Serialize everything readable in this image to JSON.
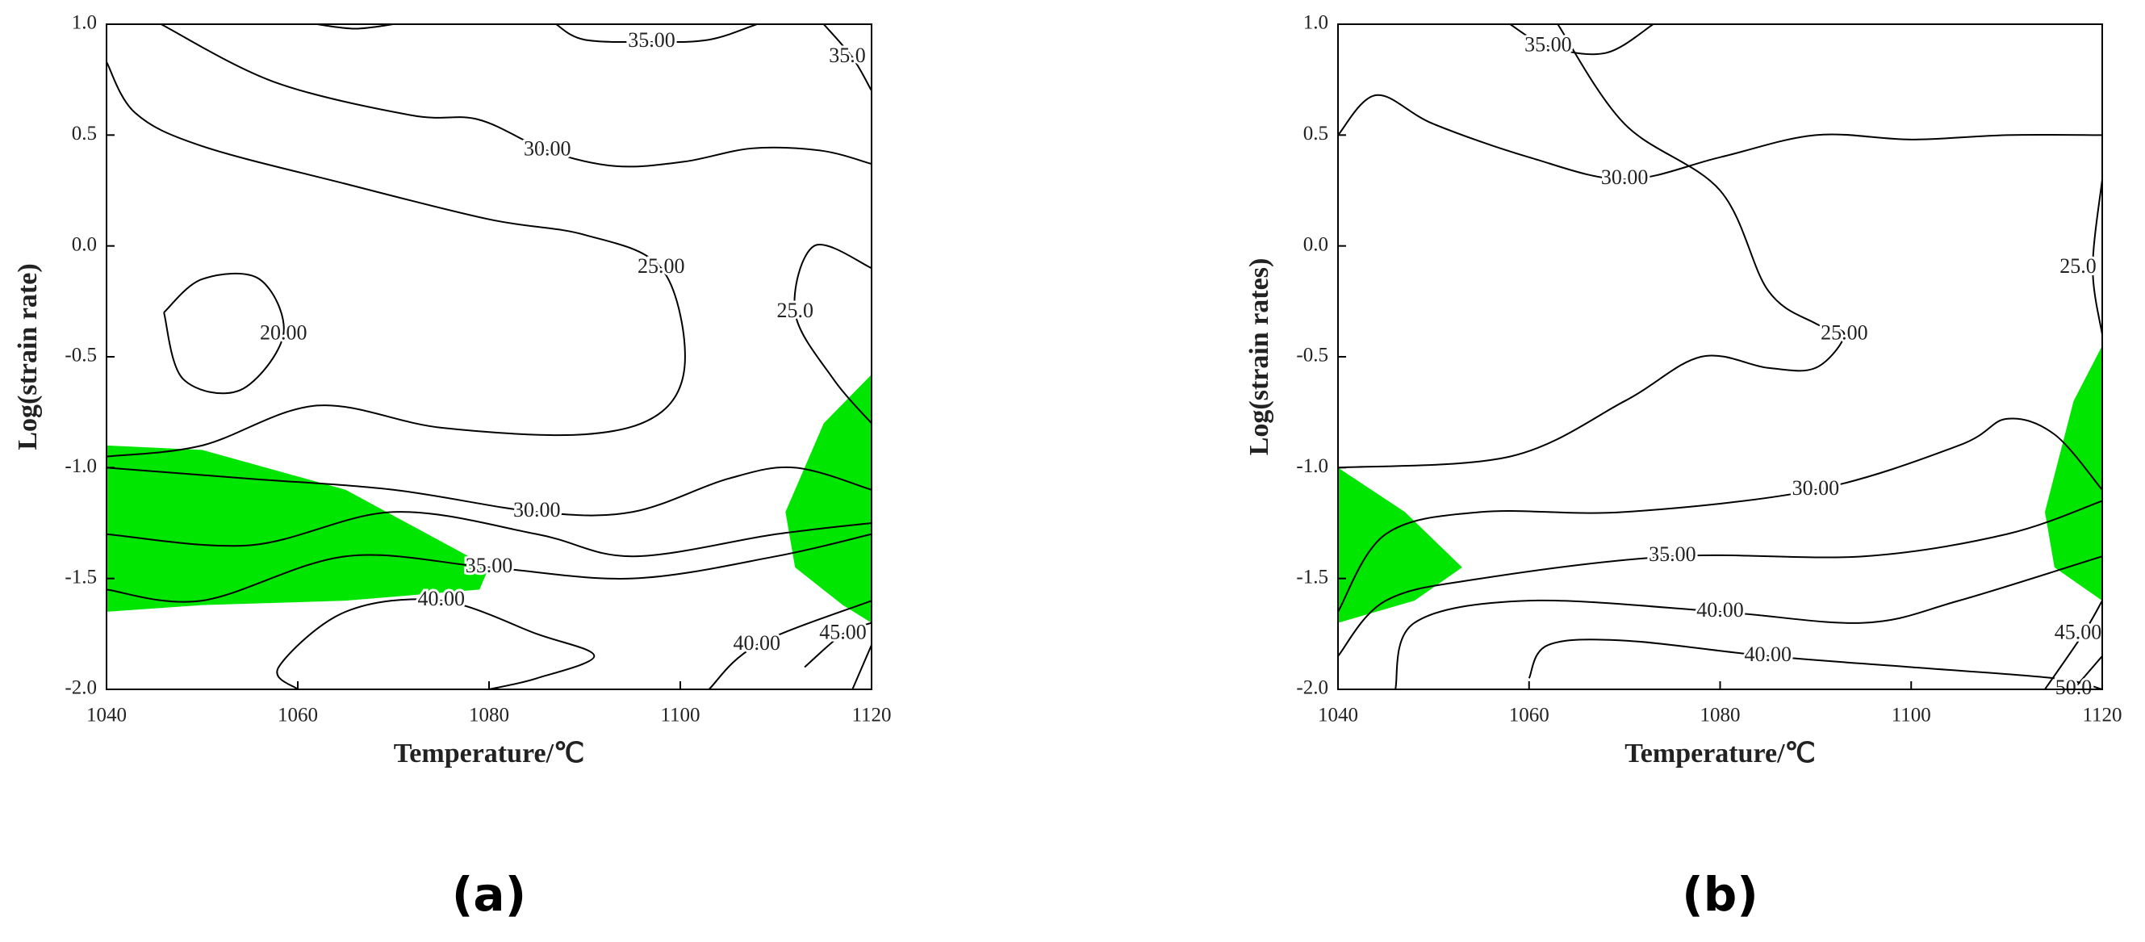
{
  "chart_data": [
    {
      "type": "contour",
      "panel_label": "(a)",
      "xlabel": "Temperature/℃",
      "ylabel": "Log(strain rate)",
      "xlim": [
        1040,
        1120
      ],
      "ylim": [
        -2,
        1
      ],
      "xticks": [
        1040,
        1060,
        1080,
        1100,
        1120
      ],
      "yticks": [
        {
          "value": -2,
          "label": "-2.0"
        },
        {
          "value": -1.5,
          "label": "-1.5"
        },
        {
          "value": -1,
          "label": "-1.0"
        },
        {
          "value": -0.5,
          "label": "-0.5"
        },
        {
          "value": 0,
          "label": "0.0"
        },
        {
          "value": 0.5,
          "label": "0.5"
        },
        {
          "value": 1,
          "label": "1.0"
        }
      ],
      "region_color": "#00e600",
      "line_color": "#000000",
      "regions": [
        {
          "x": [
            1040,
            1050,
            1065,
            1080,
            1079,
            1065,
            1050,
            1040
          ],
          "y": [
            -0.9,
            -0.92,
            -1.1,
            -1.45,
            -1.55,
            -1.6,
            -1.62,
            -1.65
          ]
        },
        {
          "x": [
            1120,
            1115,
            1111,
            1112,
            1117,
            1120
          ],
          "y": [
            -0.58,
            -0.8,
            -1.2,
            -1.45,
            -1.62,
            -1.7
          ]
        }
      ],
      "contours": [
        {
          "value": 35,
          "label": "35.00",
          "x": [
            1087,
            1090,
            1097,
            1103,
            1108
          ],
          "y": [
            1.0,
            0.93,
            0.92,
            0.93,
            1.0
          ]
        },
        {
          "value": 35,
          "label": "35.0",
          "x": [
            1115,
            1118,
            1120
          ],
          "y": [
            1.0,
            0.85,
            0.7
          ]
        },
        {
          "value": 35,
          "x": [
            1062,
            1066,
            1070
          ],
          "y": [
            1.0,
            0.98,
            1.0
          ]
        },
        {
          "value": 30,
          "label": "30.00",
          "x": [
            1045.7,
            1057.5,
            1071.8,
            1078.9,
            1086.1,
            1093.2,
            1100.4,
            1107.5,
            1114.7,
            1120
          ],
          "y": [
            1.0,
            0.74,
            0.59,
            0.57,
            0.43,
            0.36,
            0.38,
            0.44,
            0.43,
            0.37
          ]
        },
        {
          "value": 25,
          "label": "25.00",
          "x": [
            1040,
            1043,
            1050,
            1065,
            1080,
            1090,
            1098,
            1100.5,
            1098,
            1090,
            1075,
            1062,
            1050,
            1040
          ],
          "y": [
            0.83,
            0.6,
            0.45,
            0.28,
            0.12,
            0.05,
            -0.1,
            -0.5,
            -0.75,
            -0.85,
            -0.82,
            -0.72,
            -0.9,
            -0.95
          ]
        },
        {
          "value": 25,
          "label": "25.0",
          "x": [
            1120,
            1114,
            1112,
            1116,
            1120
          ],
          "y": [
            -0.1,
            0.0,
            -0.3,
            -0.6,
            -0.8
          ]
        },
        {
          "value": 20,
          "label": "20.00",
          "x": [
            1046,
            1050,
            1056,
            1058.5,
            1054,
            1048,
            1046
          ],
          "y": [
            -0.3,
            -0.15,
            -0.15,
            -0.4,
            -0.65,
            -0.6,
            -0.3
          ]
        },
        {
          "value": 30,
          "label": "30.00",
          "x": [
            1040,
            1055,
            1070,
            1085,
            1095,
            1105,
            1112,
            1120
          ],
          "y": [
            -1.0,
            -1.05,
            -1.1,
            -1.2,
            -1.2,
            -1.05,
            -1.0,
            -1.1
          ]
        },
        {
          "value": 35,
          "x": [
            1040,
            1055,
            1070,
            1085,
            1095,
            1110,
            1120
          ],
          "y": [
            -1.3,
            -1.35,
            -1.2,
            -1.3,
            -1.4,
            -1.3,
            -1.25
          ]
        },
        {
          "value": 35,
          "label": "35.00",
          "x": [
            1040,
            1050,
            1065,
            1080,
            1095,
            1110,
            1120
          ],
          "y": [
            -1.55,
            -1.6,
            -1.4,
            -1.45,
            -1.5,
            -1.4,
            -1.3
          ]
        },
        {
          "value": 40,
          "label": "40.00",
          "x": [
            1060,
            1058,
            1065,
            1075,
            1085,
            1091,
            1085,
            1080
          ],
          "y": [
            -2.0,
            -1.9,
            -1.65,
            -1.6,
            -1.75,
            -1.85,
            -1.95,
            -2.0
          ]
        },
        {
          "value": 40,
          "label": "40.00",
          "x": [
            1103,
            1108,
            1120
          ],
          "y": [
            -2.0,
            -1.8,
            -1.6
          ]
        },
        {
          "value": 45,
          "label": "45.00",
          "x": [
            1113,
            1117,
            1120
          ],
          "y": [
            -1.9,
            -1.75,
            -1.7
          ]
        },
        {
          "value": 45,
          "x": [
            1118,
            1120
          ],
          "y": [
            -2.0,
            -1.8
          ]
        }
      ]
    },
    {
      "type": "contour",
      "panel_label": "(b)",
      "xlabel": "Temperature/℃",
      "ylabel": "Log(strain rates)",
      "xlim": [
        1040,
        1120
      ],
      "ylim": [
        -2,
        1
      ],
      "xticks": [
        1040,
        1060,
        1080,
        1100,
        1120
      ],
      "yticks": [
        {
          "value": -2,
          "label": "-2.0"
        },
        {
          "value": -1.5,
          "label": "-1.5"
        },
        {
          "value": -1,
          "label": "-1.0"
        },
        {
          "value": -0.5,
          "label": "-0.5"
        },
        {
          "value": 0,
          "label": "0.0"
        },
        {
          "value": 0.5,
          "label": "0.5"
        },
        {
          "value": 1,
          "label": "1.0"
        }
      ],
      "region_color": "#00e600",
      "line_color": "#000000",
      "regions": [
        {
          "x": [
            1040,
            1047,
            1053,
            1048,
            1040
          ],
          "y": [
            -1.0,
            -1.2,
            -1.45,
            -1.6,
            -1.7
          ]
        },
        {
          "x": [
            1120,
            1117,
            1114,
            1115,
            1120
          ],
          "y": [
            -0.45,
            -0.7,
            -1.2,
            -1.45,
            -1.6
          ]
        }
      ],
      "contours": [
        {
          "value": 35,
          "label": "35.00",
          "x": [
            1058,
            1062,
            1068,
            1073
          ],
          "y": [
            1.0,
            0.9,
            0.87,
            1.0
          ]
        },
        {
          "value": 30,
          "label": "30.00",
          "x": [
            1040,
            1044,
            1050,
            1060,
            1070,
            1080,
            1090,
            1100,
            1110,
            1120
          ],
          "y": [
            0.5,
            0.68,
            0.55,
            0.4,
            0.3,
            0.4,
            0.5,
            0.48,
            0.5,
            0.5
          ]
        },
        {
          "value": 25,
          "label": "25.00",
          "x": [
            1063,
            1070,
            1080,
            1085,
            1090,
            1093,
            1090,
            1085,
            1078,
            1070,
            1058,
            1040
          ],
          "y": [
            1.0,
            0.55,
            0.25,
            -0.2,
            -0.35,
            -0.4,
            -0.55,
            -0.55,
            -0.5,
            -0.7,
            -0.95,
            -1.0
          ]
        },
        {
          "value": 25,
          "label": "25.0",
          "x": [
            1120,
            1119,
            1120
          ],
          "y": [
            0.3,
            -0.1,
            -0.4
          ]
        },
        {
          "value": 30,
          "label": "30.00",
          "x": [
            1040,
            1045,
            1055,
            1070,
            1090,
            1105,
            1110,
            1115,
            1120
          ],
          "y": [
            -1.65,
            -1.3,
            -1.2,
            -1.2,
            -1.1,
            -0.9,
            -0.78,
            -0.85,
            -1.1
          ]
        },
        {
          "value": 35,
          "label": "35.00",
          "x": [
            1040,
            1045,
            1055,
            1075,
            1095,
            1110,
            1120
          ],
          "y": [
            -1.85,
            -1.6,
            -1.5,
            -1.4,
            -1.4,
            -1.3,
            -1.15
          ]
        },
        {
          "value": 40,
          "label": "40.00",
          "x": [
            1046,
            1048,
            1060,
            1080,
            1095,
            1105,
            1120
          ],
          "y": [
            -2.0,
            -1.7,
            -1.6,
            -1.65,
            -1.7,
            -1.6,
            -1.4
          ]
        },
        {
          "value": 40,
          "label": "40.00",
          "x": [
            1060,
            1062,
            1070,
            1085,
            1100,
            1115,
            1120
          ],
          "y": [
            -1.95,
            -1.8,
            -1.78,
            -1.85,
            -1.9,
            -1.95,
            -2.0
          ]
        },
        {
          "value": 45,
          "label": "45.00",
          "x": [
            1114,
            1118,
            1120
          ],
          "y": [
            -2.0,
            -1.75,
            -1.6
          ]
        },
        {
          "value": 50,
          "label": "50.0",
          "x": [
            1117,
            1120
          ],
          "y": [
            -2.0,
            -1.85
          ]
        }
      ]
    }
  ]
}
